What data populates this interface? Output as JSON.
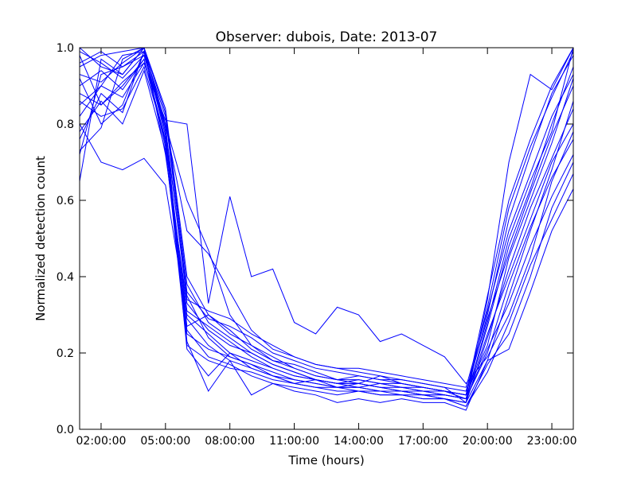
{
  "chart_data": {
    "type": "line",
    "title": "Observer: dubois, Date: 2013-07",
    "xlabel": "Time (hours)",
    "ylabel": "Normalized detection count",
    "xlim": [
      1,
      24
    ],
    "ylim": [
      0,
      1
    ],
    "x_ticks": [
      2,
      5,
      8,
      11,
      14,
      17,
      20,
      23
    ],
    "x_tick_labels": [
      "02:00:00",
      "05:00:00",
      "08:00:00",
      "11:00:00",
      "14:00:00",
      "17:00:00",
      "20:00:00",
      "23:00:00"
    ],
    "y_ticks": [
      0,
      0.2,
      0.4,
      0.6,
      0.8,
      1.0
    ],
    "y_tick_labels": [
      "0.0",
      "0.2",
      "0.4",
      "0.6",
      "0.8",
      "1.0"
    ],
    "grid": false,
    "legend": "none",
    "line_color": "#0000ff",
    "x": [
      1,
      2,
      3,
      4,
      5,
      6,
      7,
      8,
      9,
      10,
      11,
      12,
      13,
      14,
      15,
      16,
      17,
      18,
      19,
      20,
      21,
      22,
      23,
      24
    ],
    "series": [
      {
        "values": [
          0.65,
          0.97,
          0.93,
          1.0,
          0.72,
          0.33,
          0.26,
          0.22,
          0.2,
          0.17,
          0.15,
          0.13,
          0.12,
          0.13,
          0.12,
          0.11,
          0.11,
          0.1,
          0.09,
          0.22,
          0.45,
          0.6,
          0.75,
          0.92
        ]
      },
      {
        "values": [
          0.72,
          0.93,
          0.95,
          0.98,
          0.8,
          0.6,
          0.47,
          0.3,
          0.22,
          0.19,
          0.16,
          0.14,
          0.13,
          0.12,
          0.14,
          0.12,
          0.11,
          0.1,
          0.08,
          0.28,
          0.5,
          0.65,
          0.78,
          1.0
        ]
      },
      {
        "values": [
          0.8,
          0.7,
          0.68,
          0.71,
          0.64,
          0.3,
          0.25,
          0.2,
          0.18,
          0.16,
          0.14,
          0.13,
          0.12,
          0.12,
          0.11,
          0.11,
          0.1,
          0.09,
          0.08,
          0.25,
          0.4,
          0.55,
          0.7,
          0.8
        ]
      },
      {
        "values": [
          0.88,
          0.85,
          0.9,
          0.97,
          0.76,
          0.27,
          0.3,
          0.26,
          0.21,
          0.18,
          0.17,
          0.15,
          0.13,
          0.14,
          0.13,
          0.12,
          0.11,
          0.1,
          0.09,
          0.3,
          0.55,
          0.72,
          0.88,
          0.98
        ]
      },
      {
        "values": [
          0.95,
          0.98,
          0.99,
          1.0,
          0.83,
          0.38,
          0.28,
          0.24,
          0.2,
          0.17,
          0.15,
          0.13,
          0.12,
          0.11,
          0.12,
          0.11,
          0.1,
          0.1,
          0.09,
          0.35,
          0.6,
          0.76,
          0.9,
          1.0
        ]
      },
      {
        "values": [
          0.92,
          0.8,
          0.85,
          0.99,
          0.74,
          0.22,
          0.18,
          0.16,
          0.15,
          0.13,
          0.12,
          0.11,
          0.1,
          0.1,
          0.09,
          0.09,
          0.08,
          0.08,
          0.07,
          0.18,
          0.35,
          0.52,
          0.68,
          0.86
        ]
      },
      {
        "values": [
          0.99,
          0.96,
          0.92,
          0.98,
          0.79,
          0.35,
          0.24,
          0.19,
          0.17,
          0.14,
          0.13,
          0.12,
          0.11,
          0.11,
          0.1,
          0.1,
          0.09,
          0.09,
          0.08,
          0.27,
          0.48,
          0.63,
          0.8,
          0.95
        ]
      },
      {
        "values": [
          0.85,
          0.9,
          0.87,
          0.96,
          0.8,
          0.23,
          0.1,
          0.18,
          0.09,
          0.12,
          0.1,
          0.09,
          0.07,
          0.08,
          0.07,
          0.08,
          0.07,
          0.07,
          0.05,
          0.18,
          0.21,
          0.36,
          0.52,
          0.63
        ]
      },
      {
        "values": [
          0.76,
          0.88,
          0.83,
          0.99,
          0.78,
          0.21,
          0.14,
          0.2,
          0.16,
          0.14,
          0.12,
          0.13,
          0.11,
          0.12,
          0.11,
          0.1,
          0.09,
          0.08,
          0.06,
          0.17,
          0.25,
          0.4,
          0.58,
          0.7
        ]
      },
      {
        "values": [
          0.98,
          0.85,
          0.91,
          0.96,
          0.81,
          0.8,
          0.33,
          0.61,
          0.4,
          0.42,
          0.28,
          0.25,
          0.32,
          0.3,
          0.23,
          0.25,
          0.22,
          0.19,
          0.12,
          0.19,
          0.3,
          0.45,
          0.65,
          0.78
        ]
      },
      {
        "values": [
          0.73,
          0.79,
          0.97,
          1.0,
          0.8,
          0.52,
          0.46,
          0.36,
          0.26,
          0.21,
          0.19,
          0.17,
          0.16,
          0.15,
          0.14,
          0.13,
          0.12,
          0.11,
          0.07,
          0.34,
          0.7,
          0.93,
          0.89,
          1.0
        ]
      },
      {
        "values": [
          1.0,
          0.95,
          0.93,
          1.0,
          0.84,
          0.4,
          0.3,
          0.25,
          0.22,
          0.18,
          0.16,
          0.14,
          0.13,
          0.13,
          0.12,
          0.12,
          0.11,
          0.1,
          0.09,
          0.32,
          0.58,
          0.74,
          0.87,
          0.99
        ]
      },
      {
        "values": [
          0.82,
          0.9,
          0.98,
          0.99,
          0.77,
          0.29,
          0.22,
          0.18,
          0.16,
          0.14,
          0.12,
          0.11,
          0.11,
          0.1,
          0.1,
          0.09,
          0.09,
          0.08,
          0.07,
          0.24,
          0.42,
          0.58,
          0.71,
          0.84
        ]
      },
      {
        "values": [
          0.9,
          0.94,
          0.89,
          0.97,
          0.75,
          0.31,
          0.27,
          0.23,
          0.19,
          0.16,
          0.14,
          0.13,
          0.12,
          0.12,
          0.11,
          0.1,
          0.1,
          0.09,
          0.08,
          0.2,
          0.38,
          0.53,
          0.66,
          0.76
        ]
      },
      {
        "values": [
          0.96,
          0.99,
          0.95,
          0.99,
          0.82,
          0.36,
          0.29,
          0.27,
          0.24,
          0.2,
          0.18,
          0.16,
          0.15,
          0.14,
          0.13,
          0.13,
          0.12,
          0.11,
          0.1,
          0.29,
          0.46,
          0.62,
          0.77,
          0.9
        ]
      },
      {
        "values": [
          0.78,
          0.86,
          0.8,
          0.94,
          0.73,
          0.26,
          0.19,
          0.17,
          0.14,
          0.12,
          0.11,
          0.1,
          0.09,
          0.1,
          0.09,
          0.09,
          0.08,
          0.08,
          0.06,
          0.15,
          0.28,
          0.43,
          0.55,
          0.67
        ]
      },
      {
        "values": [
          0.93,
          0.91,
          0.96,
          1.0,
          0.79,
          0.34,
          0.31,
          0.29,
          0.25,
          0.22,
          0.19,
          0.17,
          0.16,
          0.16,
          0.15,
          0.14,
          0.13,
          0.12,
          0.11,
          0.31,
          0.52,
          0.67,
          0.82,
          0.93
        ]
      },
      {
        "values": [
          0.86,
          0.82,
          0.84,
          0.95,
          0.76,
          0.25,
          0.21,
          0.19,
          0.17,
          0.15,
          0.13,
          0.12,
          0.11,
          0.11,
          0.1,
          0.1,
          0.09,
          0.09,
          0.08,
          0.21,
          0.33,
          0.48,
          0.61,
          0.72
        ]
      }
    ]
  }
}
